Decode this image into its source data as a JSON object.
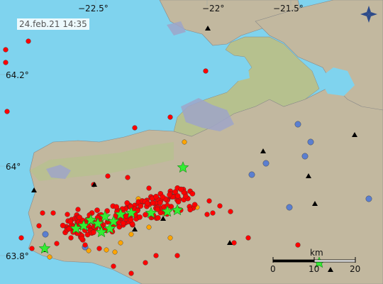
{
  "map": {
    "timestamp": "24.feb.21  14:35",
    "lon_labels": [
      "−22.5°",
      "−22°",
      "−21.5°"
    ],
    "lat_labels": [
      "64.2°",
      "64°",
      "63.8°"
    ],
    "scale": {
      "zero": "0",
      "ten": "10",
      "twenty": "20",
      "unit": "km"
    },
    "colors": {
      "sea": "#7fd3ee",
      "land": "#c2b89f",
      "lowland": "#b6c18e",
      "lava": "#9fa4c8",
      "quake_recent": "#ff0000",
      "quake_older": "#ffa500",
      "quake_old": "#5b7fd0",
      "large_quake": "#33ee33",
      "station": "#000000"
    },
    "icons": {
      "compass": "compass-rose-icon"
    }
  }
}
